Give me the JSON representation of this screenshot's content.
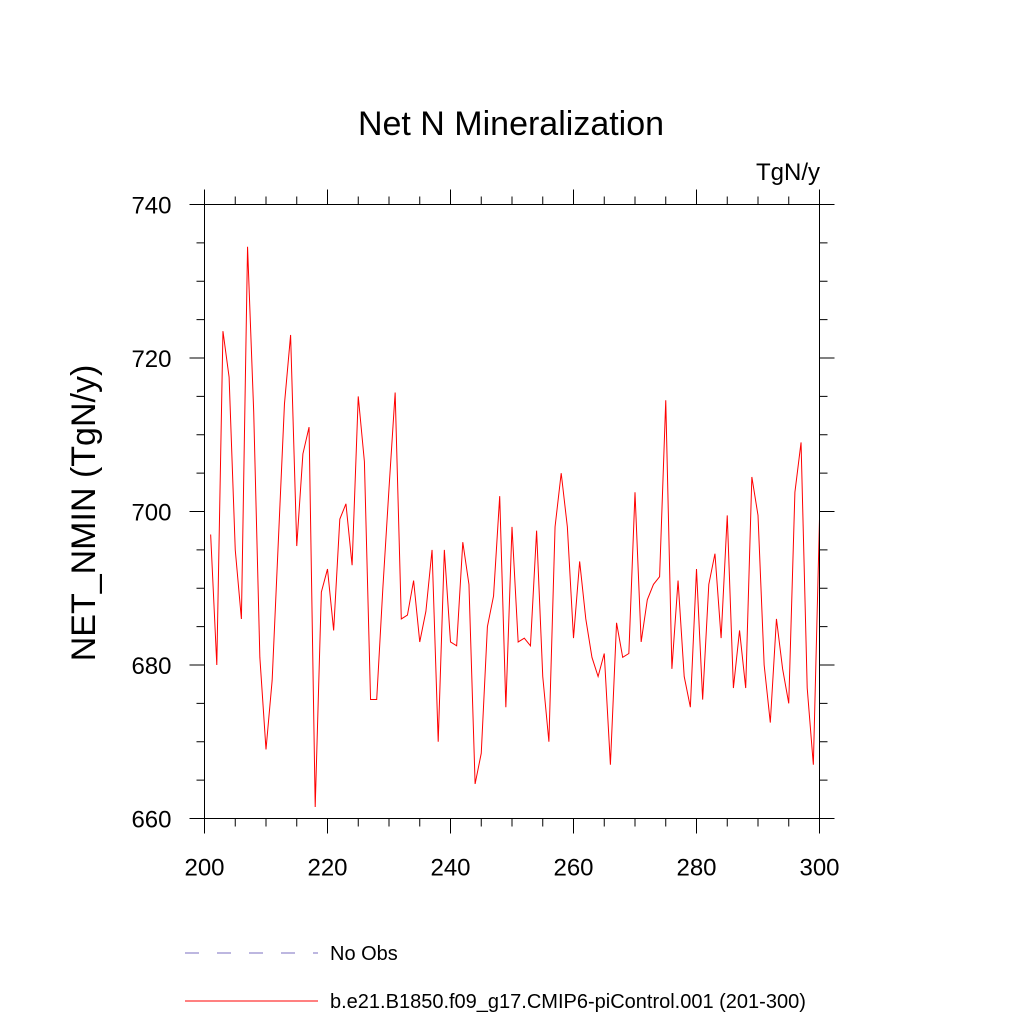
{
  "chart_data": {
    "type": "line",
    "title": "Net N Mineralization",
    "units_label": "TgN/y",
    "xlabel": "",
    "ylabel": "NET_NMIN  (TgN/y)",
    "xlim": [
      200,
      300
    ],
    "ylim": [
      660,
      740
    ],
    "xticks": [
      200,
      220,
      240,
      260,
      280,
      300
    ],
    "yticks": [
      660,
      680,
      700,
      720,
      740
    ],
    "x_minor_step": 5,
    "y_minor_step": 5,
    "legend": [
      {
        "name": "No Obs",
        "color": "#7b6fc0",
        "style": "dashed"
      },
      {
        "name": "b.e21.B1850.f09_g17.CMIP6-piControl.001 (201-300)",
        "color": "#ff0000",
        "style": "solid"
      }
    ],
    "series": [
      {
        "name": "b.e21.B1850.f09_g17.CMIP6-piControl.001 (201-300)",
        "color": "#ff0000",
        "x_start": 201,
        "values": [
          697.0,
          680.0,
          723.5,
          717.5,
          695.0,
          686.0,
          734.5,
          713.0,
          681.0,
          669.0,
          678.0,
          696.0,
          714.0,
          723.0,
          695.5,
          707.5,
          711.0,
          661.5,
          689.5,
          692.5,
          684.5,
          699.0,
          701.0,
          693.0,
          715.0,
          706.5,
          675.5,
          675.5,
          690.0,
          703.0,
          715.5,
          686.0,
          686.5,
          691.0,
          683.0,
          687.0,
          695.0,
          670.0,
          695.0,
          683.0,
          682.5,
          696.0,
          690.5,
          664.5,
          668.5,
          685.0,
          689.0,
          702.0,
          674.5,
          698.0,
          683.0,
          683.5,
          682.5,
          697.5,
          678.5,
          670.0,
          698.0,
          705.0,
          698.0,
          683.5,
          693.5,
          686.0,
          681.0,
          678.5,
          681.5,
          667.0,
          685.5,
          681.0,
          681.5,
          702.5,
          683.0,
          688.5,
          690.5,
          691.5,
          714.5,
          679.5,
          691.0,
          678.5,
          674.5,
          692.5,
          675.5,
          690.5,
          694.5,
          683.5,
          699.5,
          677.0,
          684.5,
          677.0,
          704.5,
          699.5,
          680.0,
          672.5,
          686.0,
          679.5,
          675.0,
          702.5,
          709.0,
          677.0,
          667.0,
          699.0
        ]
      }
    ]
  }
}
